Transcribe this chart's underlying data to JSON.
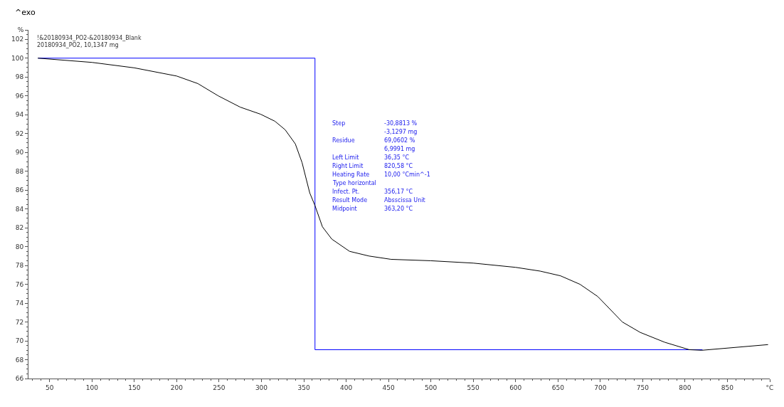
{
  "chart_data": {
    "type": "line",
    "xlim": [
      25,
      900
    ],
    "ylim": [
      66,
      103
    ],
    "xticks": [
      50,
      100,
      150,
      200,
      250,
      300,
      350,
      400,
      450,
      500,
      550,
      600,
      650,
      700,
      750,
      800,
      850,
      {
        "value": 900,
        "label": "°C"
      }
    ],
    "yticks": [
      66,
      68,
      70,
      72,
      74,
      76,
      78,
      80,
      82,
      84,
      86,
      88,
      90,
      92,
      94,
      96,
      98,
      100,
      102,
      {
        "value": 103,
        "label": "%"
      }
    ],
    "marker": "none",
    "line_style": "solid",
    "series": [
      {
        "color": "#000000",
        "x": [
          36,
          100,
          150,
          200,
          225,
          249,
          275,
          299,
          316,
          328,
          340,
          348,
          357,
          363,
          372,
          383,
          404,
          427,
          453,
          500,
          550,
          600,
          629,
          653,
          676,
          697,
          711,
          726,
          747,
          776,
          805,
          820,
          898
        ],
        "values": [
          100,
          99.55,
          98.97,
          98.1,
          97.3,
          96.0,
          94.8,
          94.05,
          93.3,
          92.4,
          90.9,
          88.9,
          85.7,
          84.4,
          82.1,
          80.8,
          79.5,
          79.0,
          78.65,
          78.5,
          78.25,
          77.8,
          77.4,
          76.9,
          76.0,
          74.7,
          73.4,
          72.0,
          70.9,
          69.85,
          69.06,
          69.0,
          69.6
        ]
      },
      {
        "color": "#0000ff",
        "x": [
          36.35,
          363.2,
          363.2,
          363.2,
          820.58
        ],
        "values": [
          100,
          100,
          69.06,
          69.06,
          69.06
        ]
      }
    ],
    "annotations": [
      "^exo",
      "!&20180934_PO2-&20180934_Blank\n20180934_PO2, 10,1347 mg",
      "Step\t-30,8813 %\n\t-3,1297 mg\nResidue\t69,0602 %\n\t6,9991 mg\nLeft Limit\t36,35 °C\nRight Limit\t820,58 °C\nHeating Rate\t10,00 °Cmin^-1\nType horizontal\t\nInfect. Pt.\t356,17 °C\nResult Mode\tAbsscissa Unit\nMidpoint\t363,20 °C"
    ]
  }
}
